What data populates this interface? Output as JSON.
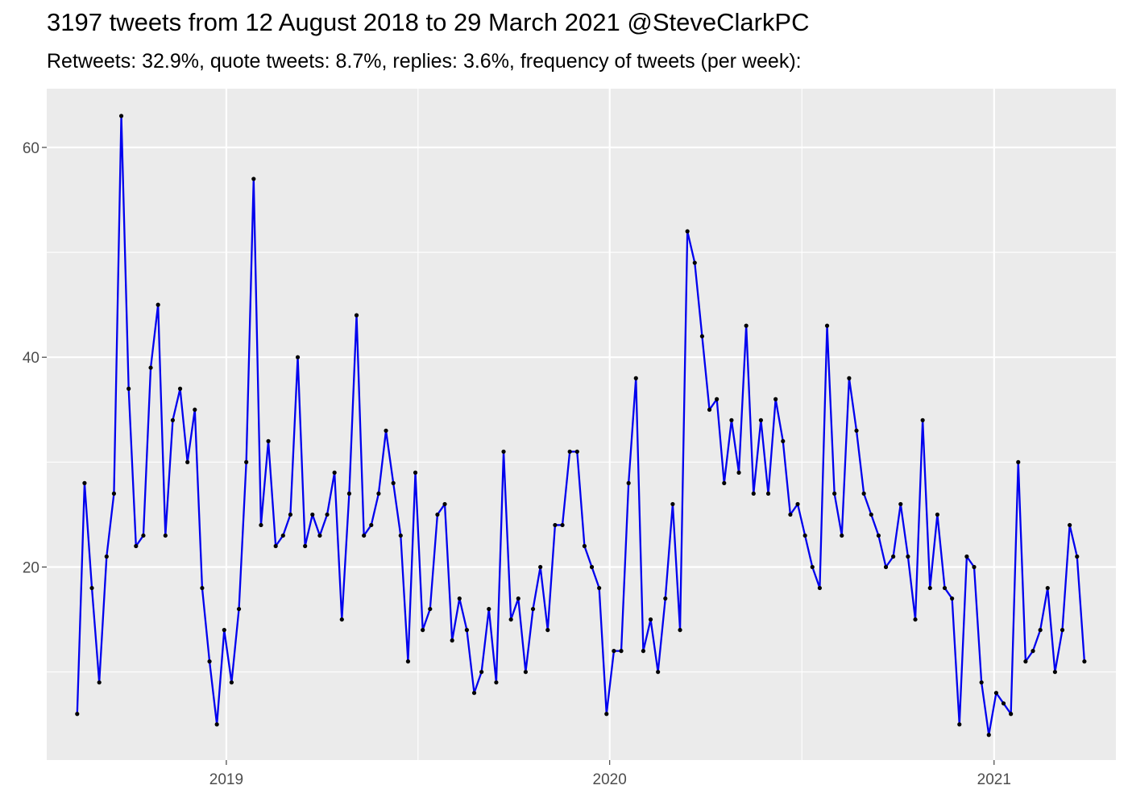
{
  "chart_title": "3197 tweets from 12 August 2018 to 29 March 2021 @SteveClarkPC",
  "chart_subtitle": "Retweets: 32.9%, quote tweets: 8.7%, replies: 3.6%, frequency of tweets (per week):",
  "chart_data": {
    "type": "line",
    "title": "3197 tweets from 12 August 2018 to 29 March 2021 @SteveClarkPC",
    "subtitle": "Retweets: 32.9%, quote tweets: 8.7%, replies: 3.6%, frequency of tweets (per week):",
    "xlabel": "",
    "ylabel": "",
    "x_start": "2018-08-12",
    "x_step_days": 7,
    "xlim": [
      "2018-07-14",
      "2021-04-27"
    ],
    "ylim": [
      1.6,
      65.6
    ],
    "x_ticks": [
      {
        "label": "2019",
        "date": "2019-01-01"
      },
      {
        "label": "2020",
        "date": "2020-01-01"
      },
      {
        "label": "2021",
        "date": "2021-01-01"
      }
    ],
    "y_ticks": [
      20,
      40,
      60
    ],
    "grid": true,
    "line_color": "#0000ee",
    "point_color": "#000000",
    "panel_background": "#ebebeb",
    "series": [
      {
        "values": [
          6,
          28,
          18,
          9,
          21,
          27,
          63,
          37,
          22,
          23,
          39,
          45,
          23,
          34,
          37,
          30,
          35,
          18,
          11,
          5,
          14,
          9,
          16,
          30,
          57,
          24,
          32,
          22,
          23,
          25,
          40,
          22,
          25,
          23,
          25,
          29,
          15,
          27,
          44,
          23,
          24,
          27,
          33,
          28,
          23,
          11,
          29,
          14,
          16,
          25,
          26,
          13,
          17,
          14,
          8,
          10,
          16,
          9,
          31,
          15,
          17,
          10,
          16,
          20,
          14,
          24,
          24,
          31,
          31,
          22,
          20,
          18,
          6,
          12,
          12,
          28,
          38,
          12,
          15,
          10,
          17,
          26,
          14,
          52,
          49,
          42,
          35,
          36,
          28,
          34,
          29,
          43,
          27,
          34,
          27,
          36,
          32,
          25,
          26,
          23,
          20,
          18,
          43,
          27,
          23,
          38,
          33,
          27,
          25,
          23,
          20,
          21,
          26,
          21,
          15,
          34,
          18,
          25,
          18,
          17,
          5,
          21,
          20,
          9,
          4,
          8,
          7,
          6,
          30,
          11,
          12,
          14,
          18,
          10,
          14,
          24,
          21,
          11
        ]
      }
    ]
  }
}
